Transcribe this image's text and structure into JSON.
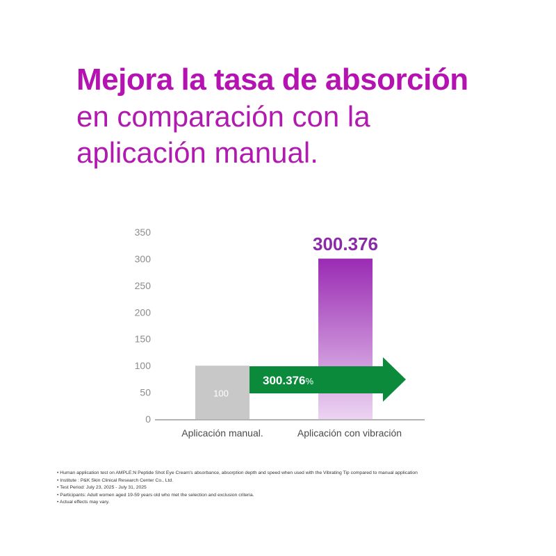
{
  "headline": {
    "line1": "Mejora la tasa de absorción",
    "line2": "en comparación con la",
    "line3": "aplicación manual."
  },
  "colors": {
    "headline_bold": "#b512b2",
    "headline_regular": "#b01aae",
    "bar_manual": "#c8c8c8",
    "bar_vibration_top": "#9a2bb3",
    "bar_vibration_bottom": "#ecd4f2",
    "arrow": "#0c8a3c",
    "value_label": "#8b2aa6",
    "axis_text": "#8c8c8c"
  },
  "chart_data": {
    "type": "bar",
    "categories": [
      "Aplicación manual.",
      "Aplicación con vibración"
    ],
    "values": [
      100,
      300.376
    ],
    "value_labels": [
      "100",
      "300.376"
    ],
    "ylim": [
      0,
      350
    ],
    "yticks": [
      0,
      50,
      100,
      150,
      200,
      250,
      300,
      350
    ],
    "grid": false,
    "arrow_annotation": {
      "value": "300.376",
      "unit": "%"
    }
  },
  "footnotes": [
    "Human application test on AMPLE:N Peptide Shot Eye Cream's absorbance, absorption depth and speed when used with the Vibrating Tip compared to manual application",
    "Institute : P&K Skin Clinical Research Center Co., Ltd.",
    "Test Period: July 23, 2025 - July 31, 2025",
    "Participants: Adult women aged 19-59 years old who met the selection and exclusion criteria.",
    "Actual effects may vary."
  ]
}
